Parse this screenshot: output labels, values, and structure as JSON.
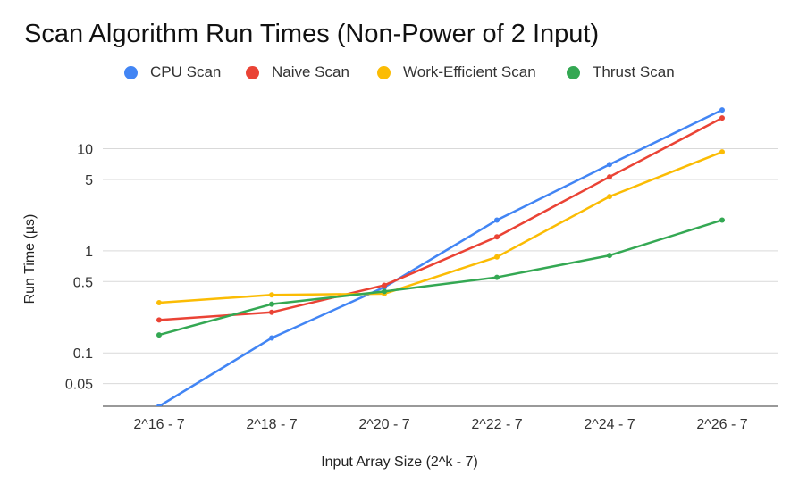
{
  "chart_data": {
    "type": "line",
    "title": "Scan Algorithm Run Times (Non-Power of 2 Input)",
    "xlabel": "Input Array Size (2^k - 7)",
    "ylabel": "Run Time (µs)",
    "yscale": "log",
    "ylim": [
      0.03,
      30
    ],
    "yticks": [
      0.05,
      0.1,
      0.5,
      1,
      5,
      10
    ],
    "ytick_labels": [
      "0.05",
      "0.1",
      "0.5",
      "1",
      "5",
      "10"
    ],
    "grid": true,
    "legend": "top",
    "categories": [
      "2^16 - 7",
      "2^18 - 7",
      "2^20 - 7",
      "2^22 - 7",
      "2^24 - 7",
      "2^26 - 7"
    ],
    "series": [
      {
        "name": "CPU Scan",
        "color": "#4285F4",
        "values": [
          0.03,
          0.14,
          0.44,
          2.0,
          7.0,
          24.0
        ]
      },
      {
        "name": "Naive Scan",
        "color": "#EA4335",
        "values": [
          0.21,
          0.25,
          0.46,
          1.37,
          5.3,
          20.0
        ]
      },
      {
        "name": "Work-Efficient Scan",
        "color": "#FBBC04",
        "values": [
          0.31,
          0.37,
          0.38,
          0.87,
          3.4,
          9.3
        ]
      },
      {
        "name": "Thrust Scan",
        "color": "#34A853",
        "values": [
          0.15,
          0.3,
          0.4,
          0.55,
          0.9,
          2.0
        ]
      }
    ]
  }
}
